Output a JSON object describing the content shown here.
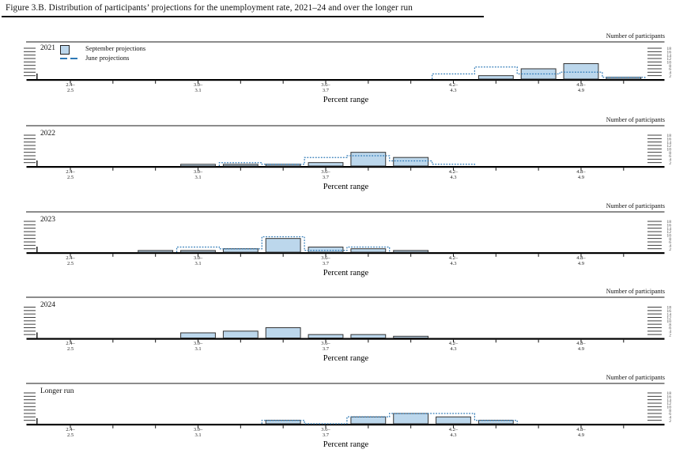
{
  "title": "Figure 3.B. Distribution of participants’ projections for the unemployment rate, 2021–24 and over the longer run",
  "axis": {
    "right_axis_title": "Number of participants",
    "x_axis_title": "Percent range",
    "y_ticks": [
      2,
      4,
      6,
      8,
      10,
      12,
      14,
      16,
      18
    ],
    "x_tick_labels": [
      {
        "top": "2.4–",
        "bottom": "2.5"
      },
      {
        "top": "3.0–",
        "bottom": "3.1"
      },
      {
        "top": "3.6–",
        "bottom": "3.7"
      },
      {
        "top": "4.2–",
        "bottom": "4.3"
      },
      {
        "top": "4.8–",
        "bottom": "4.9"
      }
    ]
  },
  "legend": {
    "september_label": "September projections",
    "june_label": "June projections"
  },
  "colors": {
    "bar_fill": "#BCD7EC",
    "bar_border": "#333333",
    "june_line": "#2E79B6",
    "axis_color": "#000000"
  },
  "chart_data": {
    "type": "bar",
    "title": "Distribution of participants’ projections for the unemployment rate",
    "xlabel": "Percent range",
    "ylabel": "Number of participants",
    "ylim": [
      0,
      18
    ],
    "bin_width": 0.2,
    "x_range_percent": [
      2.4,
      5.3
    ],
    "legend_position": "top-left of first panel",
    "grid": false,
    "panels": [
      {
        "label": "2021",
        "september": [
          {
            "bin": "4.4–4.5",
            "count": 2
          },
          {
            "bin": "4.6–4.7",
            "count": 6
          },
          {
            "bin": "4.8–4.9",
            "count": 9
          },
          {
            "bin": "5.0–5.1",
            "count": 1
          }
        ],
        "june": [
          {
            "bin": "4.2–4.3",
            "count": 3
          },
          {
            "bin": "4.4–4.5",
            "count": 7
          },
          {
            "bin": "4.6–4.7",
            "count": 3
          },
          {
            "bin": "4.8–4.9",
            "count": 4
          },
          {
            "bin": "5.0–5.1",
            "count": 1
          }
        ]
      },
      {
        "label": "2022",
        "september": [
          {
            "bin": "3.0–3.1",
            "count": 1
          },
          {
            "bin": "3.2–3.3",
            "count": 1
          },
          {
            "bin": "3.4–3.5",
            "count": 1
          },
          {
            "bin": "3.6–3.7",
            "count": 2
          },
          {
            "bin": "3.8–3.9",
            "count": 8
          },
          {
            "bin": "4.0–4.1",
            "count": 5
          }
        ],
        "june": [
          {
            "bin": "3.2–3.3",
            "count": 2
          },
          {
            "bin": "3.4–3.5",
            "count": 1
          },
          {
            "bin": "3.6–3.7",
            "count": 5
          },
          {
            "bin": "3.8–3.9",
            "count": 6
          },
          {
            "bin": "4.0–4.1",
            "count": 3
          },
          {
            "bin": "4.2–4.3",
            "count": 1
          }
        ]
      },
      {
        "label": "2023",
        "september": [
          {
            "bin": "2.8–2.9",
            "count": 1
          },
          {
            "bin": "3.0–3.1",
            "count": 1
          },
          {
            "bin": "3.2–3.3",
            "count": 2
          },
          {
            "bin": "3.4–3.5",
            "count": 8
          },
          {
            "bin": "3.6–3.7",
            "count": 3
          },
          {
            "bin": "3.8–3.9",
            "count": 2
          },
          {
            "bin": "4.0–4.1",
            "count": 1
          }
        ],
        "june": [
          {
            "bin": "3.0–3.1",
            "count": 3
          },
          {
            "bin": "3.2–3.3",
            "count": 2
          },
          {
            "bin": "3.4–3.5",
            "count": 9
          },
          {
            "bin": "3.6–3.7",
            "count": 1
          },
          {
            "bin": "3.8–3.9",
            "count": 3
          }
        ]
      },
      {
        "label": "2024",
        "september": [
          {
            "bin": "3.0–3.1",
            "count": 3
          },
          {
            "bin": "3.2–3.3",
            "count": 4
          },
          {
            "bin": "3.4–3.5",
            "count": 6
          },
          {
            "bin": "3.6–3.7",
            "count": 2
          },
          {
            "bin": "3.8–3.9",
            "count": 2
          },
          {
            "bin": "4.0–4.1",
            "count": 1
          }
        ],
        "june": []
      },
      {
        "label": "Longer run",
        "september": [
          {
            "bin": "3.4–3.5",
            "count": 2
          },
          {
            "bin": "3.8–3.9",
            "count": 4
          },
          {
            "bin": "4.0–4.1",
            "count": 6
          },
          {
            "bin": "4.2–4.3",
            "count": 4
          },
          {
            "bin": "4.4–4.5",
            "count": 2
          }
        ],
        "june": [
          {
            "bin": "3.4–3.5",
            "count": 2
          },
          {
            "bin": "3.8–3.9",
            "count": 4
          },
          {
            "bin": "4.0–4.1",
            "count": 6
          },
          {
            "bin": "4.2–4.3",
            "count": 6
          },
          {
            "bin": "4.4–4.5",
            "count": 2
          }
        ]
      }
    ]
  }
}
